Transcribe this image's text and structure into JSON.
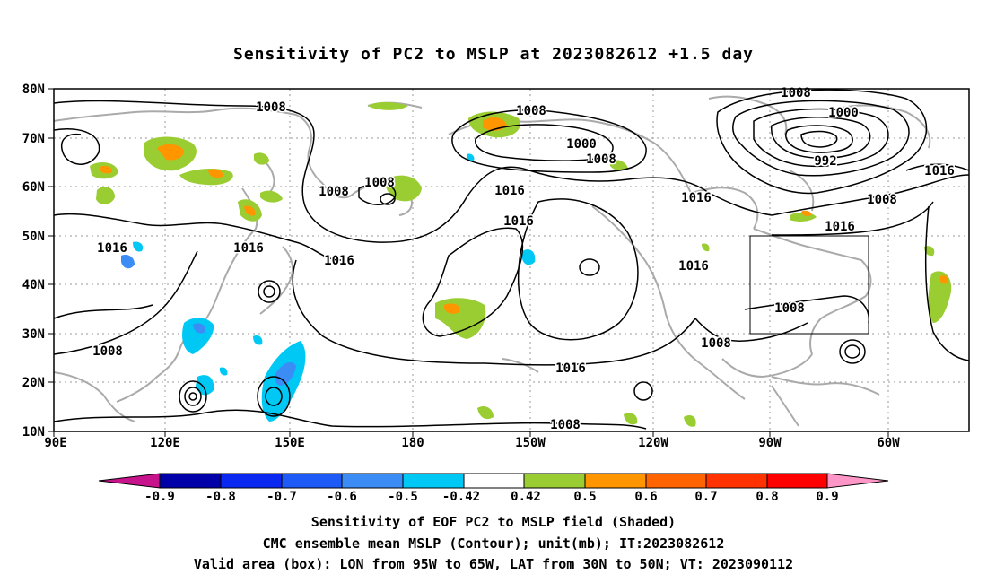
{
  "title": "Sensitivity of PC2 to MSLP at 2023082612 +1.5 day",
  "lat_labels": [
    "80N",
    "70N",
    "60N",
    "50N",
    "40N",
    "30N",
    "20N",
    "10N"
  ],
  "lon_labels": [
    "90E",
    "120E",
    "150E",
    "180",
    "150W",
    "120W",
    "90W",
    "60W"
  ],
  "contour_labels": {
    "l1008": "1008",
    "l1000": "1000",
    "l992": "992",
    "l1016": "1016"
  },
  "colorbar": {
    "labels": [
      "-0.9",
      "-0.8",
      "-0.7",
      "-0.6",
      "-0.5",
      "-0.42",
      "0.42",
      "0.5",
      "0.6",
      "0.7",
      "0.8",
      "0.9"
    ],
    "colors": [
      "#0000a8",
      "#0a28f0",
      "#1e5af5",
      "#3c8cf5",
      "#00c8f5",
      "#ffffff",
      "#9acd32",
      "#ff9600",
      "#ff6400",
      "#ff3200",
      "#ff0000"
    ],
    "low_end_color": "#c8148c",
    "high_end_color": "#ff96c8"
  },
  "captions": {
    "line1": "Sensitivity of EOF PC2 to MSLP field (Shaded)",
    "line2": "CMC ensemble mean MSLP (Contour); unit(mb); IT:2023082612",
    "line3": "Valid area (box): LON from 95W to 65W, LAT from 30N to 50N; VT: 2023090112"
  },
  "valid_area": {
    "lon_min": "95W",
    "lon_max": "65W",
    "lat_min": "30N",
    "lat_max": "50N"
  },
  "colors": {
    "coast": "#aaaaaa",
    "contour": "#000000",
    "positive_green": "#9acd32",
    "positive_orange": "#ff9600",
    "negative_cyan": "#00c8f5",
    "negative_blue": "#3c8cf5"
  }
}
